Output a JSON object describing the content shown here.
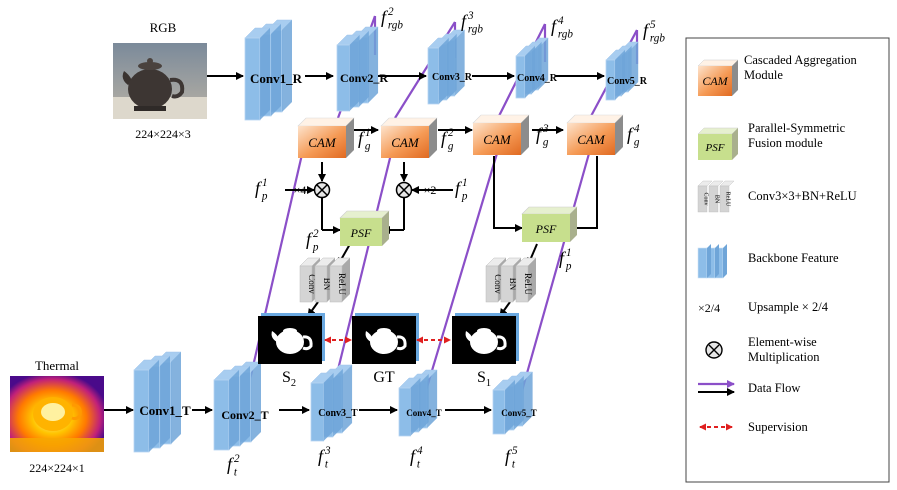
{
  "rgb": {
    "title": "RGB",
    "size": "224×224×3"
  },
  "thermal": {
    "title": "Thermal",
    "size": "224×224×1"
  },
  "rgb_blocks": [
    "Conv1_R",
    "Conv2_R",
    "Conv3_R",
    "Conv4_R",
    "Conv5_R"
  ],
  "thermal_blocks": [
    "Conv1_T",
    "Conv2_T",
    "Conv3_T",
    "Conv4_T",
    "Conv5_T"
  ],
  "f_rgb": [
    {
      "base": "f",
      "sup": "2",
      "sub": "rgb"
    },
    {
      "base": "f",
      "sup": "3",
      "sub": "rgb"
    },
    {
      "base": "f",
      "sup": "4",
      "sub": "rgb"
    },
    {
      "base": "f",
      "sup": "5",
      "sub": "rgb"
    }
  ],
  "f_t": [
    {
      "base": "f",
      "sup": "2",
      "sub": "t"
    },
    {
      "base": "f",
      "sup": "3",
      "sub": "t"
    },
    {
      "base": "f",
      "sup": "4",
      "sub": "t"
    },
    {
      "base": "f",
      "sup": "5",
      "sub": "t"
    }
  ],
  "cam_label": "CAM",
  "psf_label": "PSF",
  "f_g": [
    {
      "base": "f",
      "sup": "1",
      "sub": "g"
    },
    {
      "base": "f",
      "sup": "2",
      "sub": "g"
    },
    {
      "base": "f",
      "sup": "3",
      "sub": "g"
    },
    {
      "base": "f",
      "sup": "4",
      "sub": "g"
    }
  ],
  "f_p": {
    "left_in": {
      "base": "f",
      "sup": "1",
      "sub": "p"
    },
    "right_in": {
      "base": "f",
      "sup": "1",
      "sub": "p"
    },
    "out2": {
      "base": "f",
      "sup": "2",
      "sub": "p"
    },
    "out1": {
      "base": "f",
      "sup": "1",
      "sub": "p"
    }
  },
  "upsample_left": "×4",
  "upsample_right": "×2",
  "conv_stack": [
    "Conv",
    "BN",
    "ReLU"
  ],
  "outputs": {
    "s2_base": "S",
    "s2_sub": "2",
    "gt": "GT",
    "s1_base": "S",
    "s1_sub": "1"
  },
  "legend": [
    {
      "icon": "cam",
      "text": [
        "Cascaded Aggregation",
        "Module"
      ]
    },
    {
      "icon": "psf",
      "text": [
        "Parallel-Symmetric",
        "Fusion module"
      ]
    },
    {
      "icon": "conv",
      "text": [
        "Conv3×3+BN+ReLU"
      ]
    },
    {
      "icon": "backbone",
      "text": [
        "Backbone Feature"
      ]
    },
    {
      "icon": "upsample",
      "symbol": "×2/4",
      "text": [
        "Upsample × 2/4"
      ]
    },
    {
      "icon": "multiply",
      "text": [
        "Element-wise",
        "Multiplication"
      ]
    },
    {
      "icon": "dataflow",
      "text": [
        "Data Flow"
      ]
    },
    {
      "icon": "supervision",
      "text": [
        "Supervision"
      ]
    }
  ],
  "colors": {
    "backbone_front": "#8dbde8",
    "backbone_side": "#a8cdf0",
    "backbone_stripe": "#6fa5d8",
    "cam_light": "#fbd5b5",
    "cam_dark": "#e8702a",
    "psf_fill": "#c7df8d",
    "conv_gray": "#d4d4d4",
    "purple": "#8b4fc8",
    "supervision": "#e02020"
  }
}
